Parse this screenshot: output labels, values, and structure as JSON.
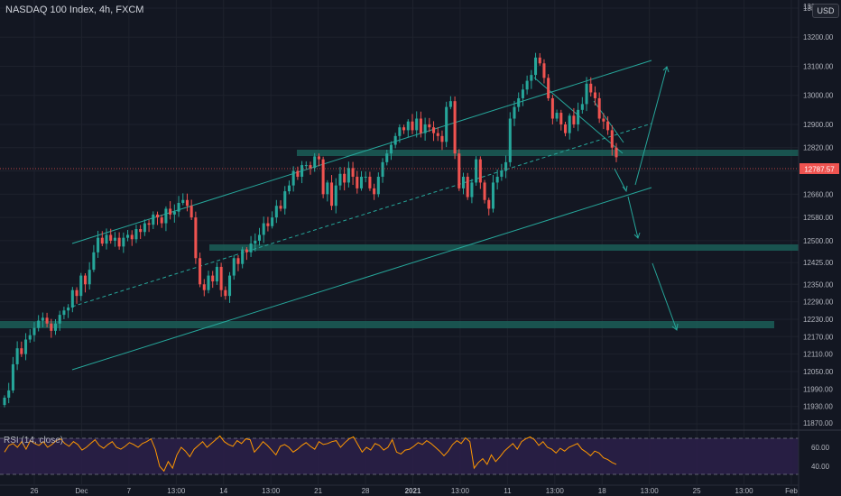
{
  "header": {
    "title": "NASDAQ 100 Index, 4h, FXCM",
    "currency": "USD"
  },
  "rsi_panel": {
    "label": "RSI (14, close)",
    "ticks": [
      "60.00",
      "40.00"
    ]
  },
  "colors": {
    "background": "#131722",
    "grid": "#1e222d",
    "up": "#26a69a",
    "down": "#ef5350",
    "channel": "#26a69a",
    "zone": "#1b5e57",
    "rsi_line": "#ff9800",
    "rsi_band": "#2a1f47",
    "price_tag": "#ef5350"
  },
  "chart_data": [
    {
      "type": "candlestick",
      "title": "NASDAQ 100 Index, 4h, FXCM",
      "ylim": [
        11830,
        13330
      ],
      "y_ticks": [
        "13330.00",
        "13300.00",
        "13200.00",
        "13100.00",
        "13000.00",
        "12900.00",
        "12820.00",
        "12740.00",
        "12660.00",
        "12580.00",
        "12500.00",
        "12425.00",
        "12350.00",
        "12290.00",
        "12230.00",
        "12170.00",
        "12110.00",
        "12050.00",
        "11990.00",
        "11930.00",
        "11870.00"
      ],
      "x_ticks": [
        "26",
        "Dec",
        "7",
        "13:00",
        "14",
        "13:00",
        "21",
        "28",
        "2021",
        "13:00",
        "11",
        "13:00",
        "18",
        "13:00",
        "25",
        "13:00",
        "Feb"
      ],
      "current_price": "12787.57",
      "series": [
        {
          "close": [
            11960,
            11985,
            12075,
            12130,
            12110,
            12160,
            12175,
            12200,
            12225,
            12235,
            12215,
            12190,
            12215,
            12245,
            12260,
            12270,
            12330,
            12310,
            12380,
            12350,
            12400,
            12460,
            12510,
            12490,
            12520,
            12500,
            12510,
            12480,
            12510,
            12520,
            12505,
            12540,
            12530,
            12560,
            12555,
            12590,
            12580,
            12560,
            12610,
            12590,
            12600,
            12630,
            12640,
            12620,
            12580,
            12440,
            12350,
            12330,
            12380,
            12360,
            12410,
            12330,
            12310,
            12380,
            12440,
            12420,
            12470,
            12460,
            12490,
            12500,
            12520,
            12560,
            12550,
            12580,
            12620,
            12610,
            12670,
            12690,
            12740,
            12720,
            12760,
            12760,
            12750,
            12790,
            12780,
            12660,
            12700,
            12620,
            12690,
            12730,
            12700,
            12750,
            12720,
            12680,
            12720,
            12720,
            12680,
            12660,
            12720,
            12770,
            12800,
            12830,
            12860,
            12890,
            12880,
            12910,
            12880,
            12920,
            12870,
            12900,
            12890,
            12870,
            12860,
            12840,
            12960,
            12980,
            12800,
            12680,
            12720,
            12650,
            12700,
            12780,
            12700,
            12640,
            12610,
            12700,
            12720,
            12740,
            12770,
            12920,
            12960,
            12990,
            13020,
            13050,
            13070,
            13130,
            13110,
            13060,
            12990,
            12920,
            12940,
            12900,
            12870,
            12930,
            12900,
            12950,
            12970,
            13040,
            13010,
            12990,
            12920,
            12910,
            12880,
            12820,
            12787
          ]
        }
      ]
    },
    {
      "type": "line",
      "title": "RSI (14, close)",
      "ylim": [
        30,
        75
      ],
      "y_ticks": [
        "60.00",
        "40.00"
      ],
      "series": [
        {
          "name": "RSI (14, close)",
          "values": [
            55,
            62,
            64,
            60,
            66,
            58,
            67,
            64,
            62,
            66,
            60,
            63,
            67,
            69,
            64,
            61,
            66,
            63,
            57,
            60,
            64,
            68,
            62,
            59,
            63,
            66,
            60,
            58,
            61,
            65,
            63,
            60,
            64,
            66,
            69,
            58,
            40,
            35,
            45,
            38,
            52,
            60,
            56,
            50,
            58,
            62,
            66,
            60,
            64,
            68,
            72,
            66,
            63,
            61,
            67,
            64,
            69,
            68,
            55,
            60,
            66,
            62,
            57,
            52,
            61,
            63,
            60,
            55,
            58,
            62,
            65,
            61,
            58,
            66,
            63,
            64,
            66,
            67,
            60,
            65,
            69,
            71,
            63,
            55,
            60,
            57,
            64,
            62,
            57,
            60,
            68,
            55,
            53,
            57,
            58,
            61,
            65,
            63,
            67,
            64,
            60,
            56,
            51,
            56,
            63,
            67,
            64,
            70,
            66,
            38,
            44,
            48,
            42,
            52,
            45,
            50,
            56,
            60,
            64,
            58,
            66,
            69,
            71,
            68,
            62,
            66,
            60,
            58,
            54,
            59,
            56,
            60,
            62,
            64,
            58,
            55,
            51,
            56,
            54,
            49,
            47,
            44,
            42
          ]
        }
      ]
    }
  ]
}
